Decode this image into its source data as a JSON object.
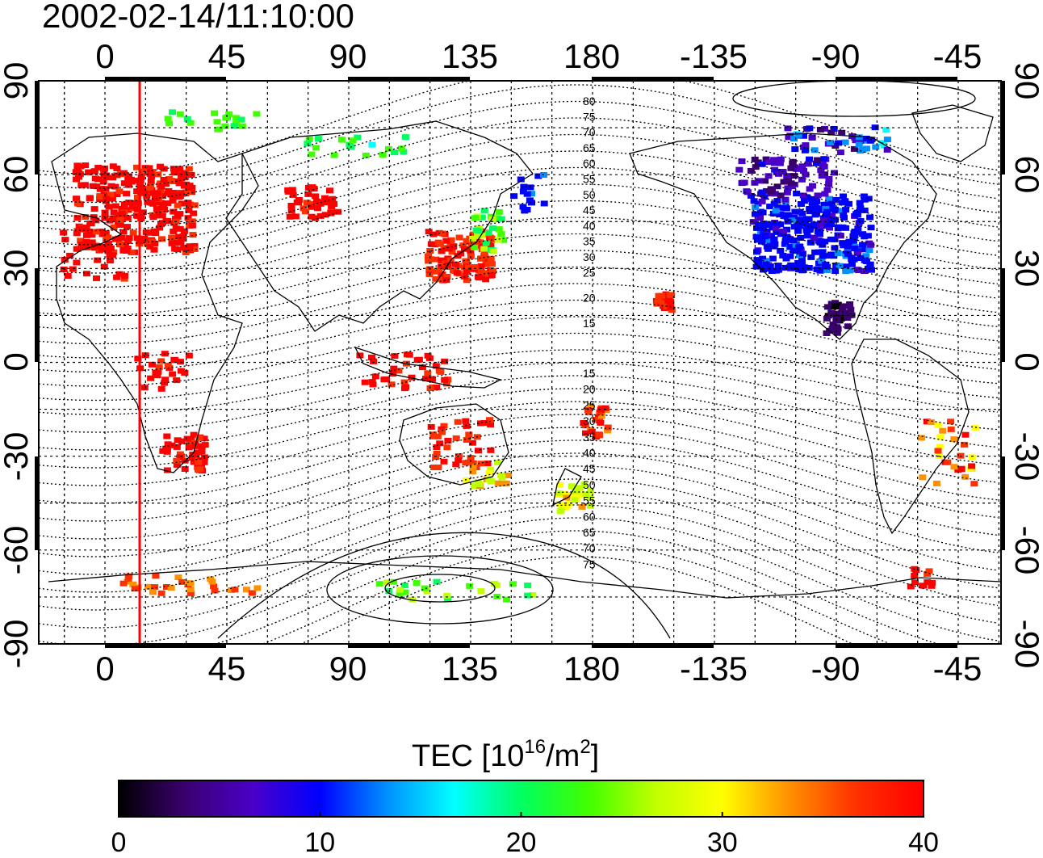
{
  "map": {
    "timestamp": "2002-02-14/11:10:00",
    "lon_ticks": [
      "0",
      "45",
      "90",
      "135",
      "180",
      "-135",
      "-90",
      "-45"
    ],
    "lat_ticks": [
      "90",
      "60",
      "30",
      "0",
      "-30",
      "-60",
      "-90"
    ],
    "contour_labels_north": [
      "80",
      "75",
      "70",
      "65",
      "60",
      "55",
      "50",
      "45",
      "40",
      "35",
      "30",
      "25",
      "20",
      "15"
    ],
    "contour_labels_south": [
      "15",
      "20",
      "25",
      "30",
      "35",
      "40",
      "45",
      "50",
      "55",
      "60",
      "65",
      "70",
      "75"
    ],
    "colorbar": {
      "title_main": "TEC  [10",
      "title_sup1": "16",
      "title_mid": "/m",
      "title_sup2": "2",
      "title_end": "]",
      "ticks": [
        "0",
        "10",
        "20",
        "30",
        "40"
      ],
      "range": [
        0,
        40
      ],
      "stops": [
        "#000000",
        "#3b0070",
        "#4a00c8",
        "#0000ff",
        "#0090ff",
        "#00ffff",
        "#00ff60",
        "#40ff00",
        "#c0ff00",
        "#ffff00",
        "#ff9000",
        "#ff3000",
        "#ff0000"
      ]
    },
    "colors": {
      "contour": "#000000",
      "grid": "#000000",
      "meridian_marker": "#ff0000"
    }
  }
}
